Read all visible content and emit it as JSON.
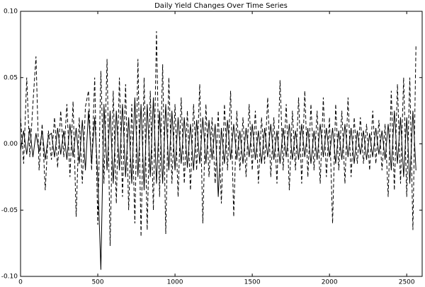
{
  "chart_data": {
    "type": "line",
    "title": "Daily Yield Changes Over Time Series",
    "x": [
      0,
      20,
      40,
      60,
      80,
      100,
      120,
      140,
      160,
      180,
      200,
      220,
      240,
      260,
      280,
      300,
      320,
      340,
      360,
      380,
      400,
      420,
      440,
      460,
      480,
      500,
      520,
      540,
      560,
      580,
      600,
      620,
      640,
      660,
      680,
      700,
      720,
      740,
      760,
      780,
      800,
      820,
      840,
      860,
      880,
      900,
      920,
      940,
      960,
      980,
      1000,
      1020,
      1040,
      1060,
      1080,
      1100,
      1120,
      1140,
      1160,
      1180,
      1200,
      1220,
      1240,
      1260,
      1280,
      1300,
      1320,
      1340,
      1360,
      1380,
      1400,
      1420,
      1440,
      1460,
      1480,
      1500,
      1520,
      1540,
      1560,
      1580,
      1600,
      1620,
      1640,
      1660,
      1680,
      1700,
      1720,
      1740,
      1760,
      1780,
      1800,
      1820,
      1840,
      1860,
      1880,
      1900,
      1920,
      1940,
      1960,
      1980,
      2000,
      2020,
      2040,
      2060,
      2080,
      2100,
      2120,
      2140,
      2160,
      2180,
      2200,
      2220,
      2240,
      2260,
      2280,
      2300,
      2320,
      2340,
      2360,
      2380,
      2400,
      2420,
      2440,
      2460,
      2480,
      2500,
      2520,
      2540,
      2560
    ],
    "series": [
      {
        "color": "#000000",
        "linestyle": "dashed",
        "values": [
          0.02,
          -0.015,
          0.05,
          -0.01,
          0.03,
          0.066,
          -0.02,
          0.015,
          -0.035,
          0.01,
          -0.012,
          0.02,
          -0.018,
          0.025,
          -0.01,
          0.03,
          -0.025,
          0.032,
          -0.055,
          0.02,
          -0.03,
          0.028,
          0.04,
          -0.02,
          0.05,
          -0.061,
          0.055,
          -0.03,
          0.064,
          -0.077,
          0.04,
          -0.045,
          0.05,
          -0.04,
          0.045,
          -0.05,
          0.03,
          -0.06,
          0.064,
          -0.07,
          0.05,
          -0.065,
          0.04,
          -0.05,
          0.085,
          -0.04,
          0.06,
          -0.068,
          0.05,
          -0.03,
          0.03,
          -0.04,
          0.035,
          -0.03,
          0.025,
          -0.035,
          0.03,
          -0.02,
          0.045,
          -0.06,
          0.03,
          -0.025,
          0.02,
          -0.03,
          0.025,
          -0.045,
          0.03,
          -0.02,
          0.04,
          -0.055,
          0.025,
          -0.02,
          0.02,
          -0.025,
          0.03,
          -0.02,
          0.025,
          -0.03,
          0.02,
          -0.015,
          0.035,
          -0.025,
          0.02,
          -0.03,
          0.048,
          -0.02,
          0.03,
          -0.035,
          0.025,
          -0.02,
          0.035,
          -0.03,
          0.04,
          -0.025,
          0.03,
          -0.02,
          0.025,
          -0.03,
          0.035,
          -0.025,
          0.02,
          -0.06,
          0.03,
          -0.02,
          0.025,
          -0.03,
          0.035,
          -0.025,
          0.02,
          -0.015,
          0.02,
          -0.015,
          0.015,
          -0.02,
          0.025,
          -0.015,
          0.018,
          -0.02,
          0.015,
          -0.04,
          0.04,
          -0.035,
          0.045,
          -0.03,
          0.05,
          -0.04,
          0.05,
          -0.065,
          0.075
        ]
      },
      {
        "color": "#000000",
        "linestyle": "solid",
        "values": [
          -0.005,
          0.01,
          -0.008,
          0.012,
          -0.01,
          0.008,
          -0.006,
          0.01,
          -0.012,
          0.006,
          0.008,
          -0.01,
          0.012,
          -0.008,
          0.01,
          -0.012,
          0.015,
          -0.01,
          0.012,
          -0.015,
          0.018,
          -0.02,
          0.025,
          -0.015,
          0.02,
          -0.025,
          -0.095,
          0.03,
          -0.02,
          0.025,
          -0.03,
          0.025,
          -0.02,
          0.03,
          -0.025,
          0.02,
          -0.03,
          0.035,
          -0.025,
          0.03,
          -0.035,
          0.03,
          -0.025,
          0.035,
          -0.03,
          0.025,
          -0.03,
          0.03,
          -0.02,
          0.025,
          -0.02,
          0.02,
          -0.015,
          0.02,
          -0.018,
          0.015,
          -0.02,
          0.018,
          -0.015,
          0.02,
          -0.015,
          0.018,
          -0.012,
          0.015,
          -0.04,
          0.012,
          -0.015,
          0.018,
          -0.012,
          0.015,
          -0.012,
          0.01,
          -0.015,
          0.012,
          -0.01,
          0.015,
          -0.012,
          0.01,
          -0.015,
          0.012,
          -0.01,
          0.015,
          -0.012,
          0.01,
          -0.015,
          0.012,
          -0.01,
          0.015,
          -0.012,
          0.01,
          -0.012,
          0.015,
          -0.01,
          0.012,
          -0.015,
          0.01,
          -0.012,
          0.015,
          -0.01,
          0.012,
          -0.01,
          0.012,
          -0.015,
          0.01,
          -0.012,
          0.015,
          -0.01,
          0.012,
          -0.015,
          0.01,
          -0.008,
          0.01,
          -0.012,
          0.008,
          -0.01,
          0.012,
          -0.008,
          0.01,
          -0.012,
          0.015,
          -0.02,
          0.025,
          -0.015,
          0.02,
          -0.025,
          0.02,
          -0.03,
          0.025,
          -0.02
        ]
      }
    ],
    "xlim": [
      0,
      2600
    ],
    "xticks": [
      0,
      500,
      1000,
      1500,
      2000,
      2500
    ],
    "ylim": [
      -0.1,
      0.1
    ],
    "yticks": [
      {
        "value": -0.1,
        "label": "-0.10"
      },
      -0.05,
      {
        "value": 0,
        "label": "0.00"
      },
      0.05,
      {
        "value": 0.1,
        "label": "0.10"
      }
    ]
  }
}
